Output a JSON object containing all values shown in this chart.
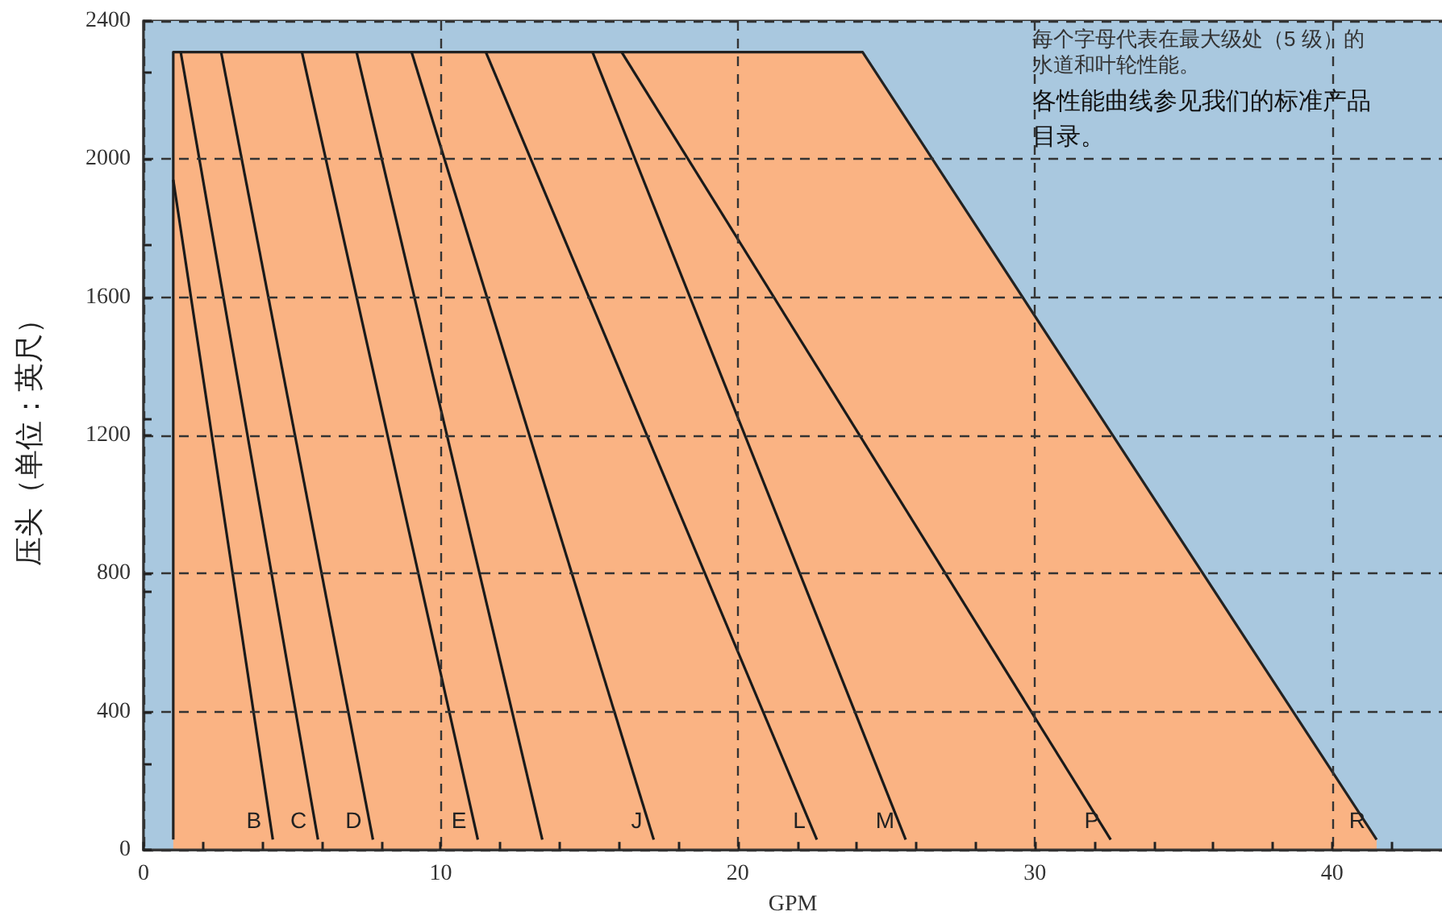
{
  "chart_data": {
    "type": "line",
    "xlabel": "GPM",
    "ylabel": "压头（单位：英尺）",
    "annotations": [
      "每个字母代表在最大级处（5 级）的水道和叶轮性能。",
      "各性能曲线参见我们的标准产品目录。"
    ],
    "xlim": [
      0,
      43.7
    ],
    "xticks": [
      0,
      10,
      20,
      30,
      40
    ],
    "ylim": [
      0,
      2400
    ],
    "yticks": [
      0,
      400,
      800,
      1200,
      1600,
      2000,
      2400
    ],
    "grid": true,
    "marker": "none",
    "bands": [
      {
        "axis": "x",
        "from": 0,
        "to": 43.7,
        "color": "#a9c8df"
      }
    ],
    "series": [
      {
        "name": "R",
        "type": "area",
        "color": "#fab383",
        "x": [
          1.0,
          1.0,
          24.2,
          41.5
        ],
        "values": [
          30,
          2310,
          2310,
          30
        ]
      },
      {
        "name": "B",
        "color": "#1a1a1a",
        "x": [
          1.0,
          4.35
        ],
        "values": [
          1940,
          30
        ]
      },
      {
        "name": "C",
        "color": "#1a1a1a",
        "x": [
          1.25,
          5.87
        ],
        "values": [
          2310,
          30
        ]
      },
      {
        "name": "D",
        "color": "#1a1a1a",
        "x": [
          2.61,
          7.72
        ],
        "values": [
          2310,
          30
        ]
      },
      {
        "name": "E",
        "color": "#1a1a1a",
        "x": [
          5.33,
          11.25
        ],
        "values": [
          2310,
          30
        ]
      },
      {
        "color": "#1a1a1a",
        "x": [
          7.17,
          13.42
        ],
        "values": [
          2310,
          30
        ]
      },
      {
        "name": "J",
        "color": "#1a1a1a",
        "x": [
          9.02,
          17.17
        ],
        "values": [
          2310,
          30
        ]
      },
      {
        "name": "L",
        "color": "#1a1a1a",
        "x": [
          11.52,
          22.66
        ],
        "values": [
          2310,
          30
        ]
      },
      {
        "name": "M",
        "color": "#1a1a1a",
        "x": [
          15.11,
          25.65
        ],
        "values": [
          2310,
          30
        ]
      },
      {
        "name": "P",
        "color": "#1a1a1a",
        "x": [
          16.09,
          32.55
        ],
        "values": [
          2310,
          30
        ]
      }
    ]
  }
}
